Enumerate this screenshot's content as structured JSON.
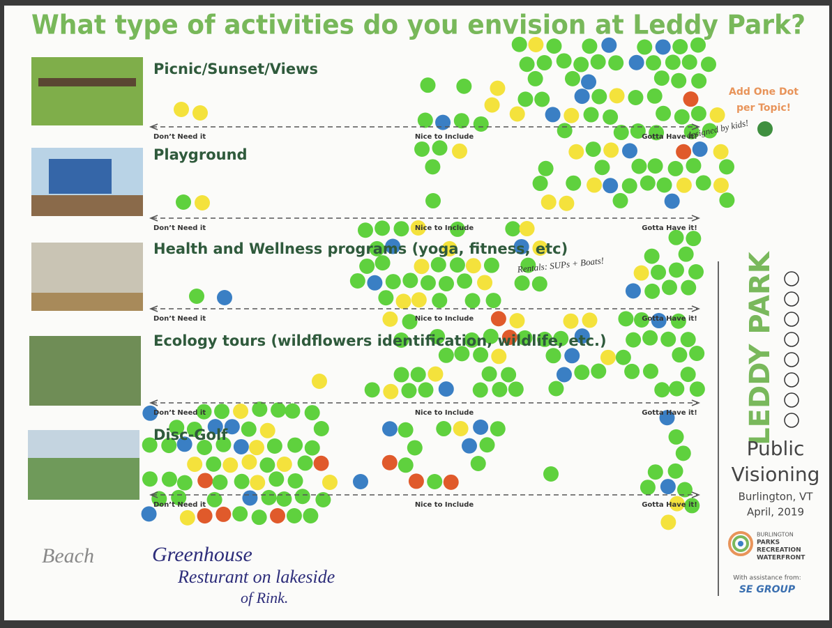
{
  "title": "What type of activities do you envision at Leddy Park?",
  "scale": {
    "low": "Don’t Need it",
    "mid": "Nice to Include",
    "high": "Gotta Have it!"
  },
  "topics": [
    "Picnic/Sunset/Views",
    "Playground",
    "Health and Wellness programs (yoga, fitness, etc)",
    "Ecology tours (wildflowers identification, wildlife, etc.)",
    "Disc-Golf"
  ],
  "instruction": [
    "Add One Dot",
    "per Topic!"
  ],
  "sidebar": {
    "park": "LEDDY PARK",
    "heading": [
      "Public",
      "Visioning"
    ],
    "location": "Burlington, VT",
    "date": "April, 2019",
    "org": [
      "BURLINGTON",
      "PARKS",
      "RECREATION",
      "WATERFRONT"
    ],
    "assist": "With assistance from:",
    "firm": "SE GROUP"
  },
  "notes": {
    "handwritten": [
      "Beach",
      "Greenhouse",
      "Resturant on lakeside",
      "of Rink."
    ],
    "annotations": [
      "designed by kids!",
      "Rentals: SUPs + Boats!"
    ]
  }
}
